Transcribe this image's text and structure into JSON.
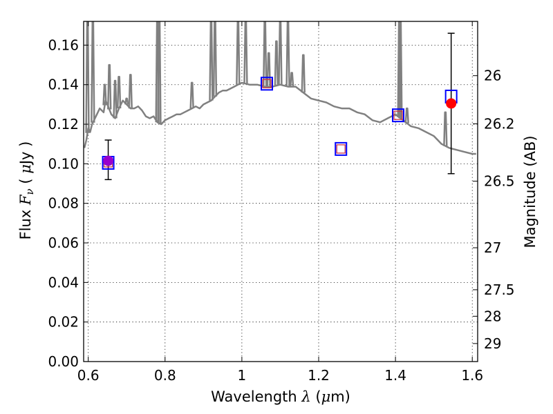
{
  "chart_data": {
    "type": "scatter",
    "title": "",
    "xlabel": {
      "prefix": "Wavelength ",
      "symbol": "λ",
      "unit_open": " (",
      "unit_mu": "μ",
      "unit_rest": "m)"
    },
    "ylabel": {
      "prefix": "Flux ",
      "symbol": "F",
      "subscript": "ν",
      "unit_open": " ( ",
      "unit_mu": "μ",
      "unit_rest": "Jy )"
    },
    "y2label": "Magnitude (AB)",
    "xlim": [
      0.588,
      1.614
    ],
    "ylim": [
      0.0,
      0.172
    ],
    "grid": true,
    "x_ticks": [
      0.6,
      0.8,
      1.0,
      1.2,
      1.4,
      1.6
    ],
    "x_tick_labels": [
      "0.6",
      "0.8",
      "1",
      "1.2",
      "1.4",
      "1.6"
    ],
    "y_ticks": [
      0.0,
      0.02,
      0.04,
      0.06,
      0.08,
      0.1,
      0.12,
      0.14,
      0.16
    ],
    "y_tick_labels": [
      "0.00",
      "0.02",
      "0.04",
      "0.06",
      "0.08",
      "0.10",
      "0.12",
      "0.14",
      "0.16"
    ],
    "y2_ticks": [
      26,
      26.2,
      26.5,
      27,
      27.5,
      28,
      29
    ],
    "y2_tick_labels": [
      "26",
      "26.2",
      "26.5",
      "27",
      "27.5",
      "28",
      "29"
    ],
    "colors": {
      "template": "#808080",
      "model_square": "#0000ff",
      "synthetic_square": "#cc3344",
      "observed": "#ff0000",
      "observed_overlap": "#9900cc",
      "errorbar": "#000000"
    },
    "series": [
      {
        "kind": "template_spectrum",
        "x": [
          0.59,
          0.595,
          0.6,
          0.605,
          0.61,
          0.62,
          0.63,
          0.64,
          0.645,
          0.65,
          0.66,
          0.67,
          0.68,
          0.69,
          0.7,
          0.71,
          0.72,
          0.73,
          0.74,
          0.75,
          0.76,
          0.77,
          0.78,
          0.79,
          0.8,
          0.81,
          0.82,
          0.83,
          0.84,
          0.85,
          0.86,
          0.87,
          0.88,
          0.89,
          0.9,
          0.91,
          0.92,
          0.93,
          0.94,
          0.95,
          0.96,
          0.97,
          0.98,
          0.99,
          1.0,
          1.02,
          1.04,
          1.06,
          1.08,
          1.1,
          1.12,
          1.14,
          1.16,
          1.18,
          1.2,
          1.22,
          1.24,
          1.26,
          1.28,
          1.3,
          1.32,
          1.34,
          1.36,
          1.38,
          1.4,
          1.42,
          1.44,
          1.46,
          1.48,
          1.5,
          1.52,
          1.54,
          1.56,
          1.58,
          1.6,
          1.61
        ],
        "y": [
          0.108,
          0.112,
          0.118,
          0.116,
          0.12,
          0.124,
          0.128,
          0.126,
          0.132,
          0.13,
          0.125,
          0.123,
          0.128,
          0.132,
          0.13,
          0.128,
          0.128,
          0.129,
          0.127,
          0.124,
          0.123,
          0.124,
          0.121,
          0.12,
          0.122,
          0.123,
          0.124,
          0.125,
          0.125,
          0.126,
          0.127,
          0.128,
          0.129,
          0.128,
          0.13,
          0.131,
          0.132,
          0.134,
          0.136,
          0.137,
          0.137,
          0.138,
          0.139,
          0.14,
          0.141,
          0.14,
          0.14,
          0.139,
          0.139,
          0.14,
          0.139,
          0.139,
          0.136,
          0.133,
          0.132,
          0.131,
          0.129,
          0.128,
          0.128,
          0.126,
          0.125,
          0.122,
          0.121,
          0.123,
          0.125,
          0.122,
          0.119,
          0.118,
          0.116,
          0.114,
          0.11,
          0.108,
          0.107,
          0.106,
          0.105,
          0.105
        ]
      },
      {
        "kind": "template_emission_lines",
        "x": [
          0.598,
          0.612,
          0.643,
          0.655,
          0.67,
          0.68,
          0.7,
          0.71,
          0.78,
          0.785,
          0.87,
          0.92,
          0.93,
          0.99,
          1.01,
          1.06,
          1.07,
          1.09,
          1.1,
          1.12,
          1.13,
          1.16,
          1.41,
          1.413,
          1.43,
          1.53
        ],
        "y": [
          0.172,
          0.172,
          0.14,
          0.15,
          0.142,
          0.144,
          0.133,
          0.145,
          0.172,
          0.172,
          0.141,
          0.172,
          0.172,
          0.172,
          0.172,
          0.172,
          0.156,
          0.162,
          0.172,
          0.172,
          0.146,
          0.155,
          0.172,
          0.172,
          0.128,
          0.126
        ]
      },
      {
        "kind": "model_squares",
        "x": [
          0.652,
          1.065,
          1.258,
          1.407,
          1.545
        ],
        "y": [
          0.1005,
          0.1405,
          0.1075,
          0.1245,
          0.134
        ]
      },
      {
        "kind": "synthetic_squares",
        "x": [
          0.652,
          1.065,
          1.258,
          1.407
        ],
        "y": [
          0.1005,
          0.1405,
          0.1075,
          0.1245
        ]
      },
      {
        "kind": "observed_points",
        "x": [
          0.652,
          1.545
        ],
        "y": [
          0.1015,
          0.1305
        ],
        "yerr_low": [
          0.0095,
          0.0355
        ],
        "yerr_high": [
          0.0105,
          0.0355
        ]
      }
    ]
  }
}
